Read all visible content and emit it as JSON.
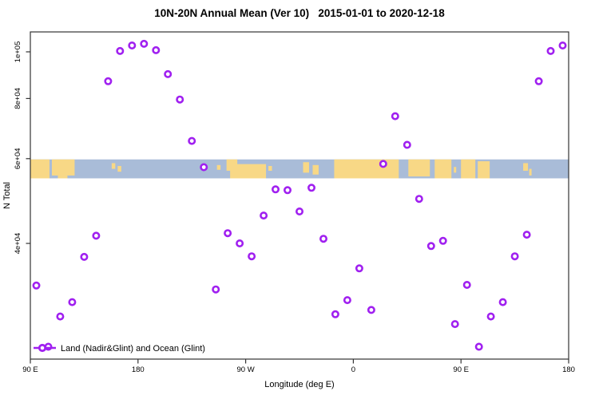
{
  "header": {
    "title": "10N-20N Annual Mean (Ver 10)   2015-01-01 to 2020-12-18"
  },
  "chart_data": {
    "type": "scatter",
    "title": "10N-20N Annual Mean (Ver 10)   2015-01-01 to 2020-12-18",
    "xlabel": "Longitude (deg E)",
    "ylabel": "N Total",
    "x_axis": {
      "min": 90,
      "max": 540,
      "note": "longitude wraps: 90E to 180, 90W, 0, 90E, 180",
      "ticks": [
        {
          "value": 90,
          "label": "90 E"
        },
        {
          "value": 180,
          "label": "180"
        },
        {
          "value": 270,
          "label": "90 W"
        },
        {
          "value": 360,
          "label": "0"
        },
        {
          "value": 450,
          "label": "90 E"
        },
        {
          "value": 540,
          "label": "180"
        }
      ]
    },
    "y_axis": {
      "scale": "log",
      "min": 23000,
      "max": 110000,
      "ticks": [
        {
          "value": 100000,
          "label": "1e+05"
        },
        {
          "value": 80000,
          "label": "8e+04"
        },
        {
          "value": 60000,
          "label": "6e+04"
        },
        {
          "value": 40000,
          "label": "4e+04"
        }
      ]
    },
    "legend": {
      "label": "Land (Nadir&Glint) and Ocean (Glint)"
    },
    "marker": {
      "shape": "open-circle",
      "color": "#a020f0",
      "fill": "#ffffff"
    },
    "series": [
      {
        "name": "Land (Nadir&Glint) and Ocean (Glint)",
        "points": [
          [
            95,
            32700
          ],
          [
            105,
            24400
          ],
          [
            115,
            28200
          ],
          [
            125,
            30200
          ],
          [
            135,
            37500
          ],
          [
            145,
            41500
          ],
          [
            155,
            86900
          ],
          [
            165,
            100400
          ],
          [
            175,
            103100
          ],
          [
            185,
            103900
          ],
          [
            195,
            100800
          ],
          [
            205,
            89900
          ],
          [
            215,
            79600
          ],
          [
            225,
            65300
          ],
          [
            235,
            57600
          ],
          [
            245,
            32100
          ],
          [
            255,
            42000
          ],
          [
            265,
            40000
          ],
          [
            275,
            37600
          ],
          [
            285,
            45700
          ],
          [
            295,
            51800
          ],
          [
            305,
            51600
          ],
          [
            315,
            46600
          ],
          [
            325,
            52200
          ],
          [
            335,
            40900
          ],
          [
            345,
            28500
          ],
          [
            355,
            30500
          ],
          [
            365,
            35500
          ],
          [
            375,
            29100
          ],
          [
            385,
            58500
          ],
          [
            395,
            73500
          ],
          [
            405,
            64100
          ],
          [
            415,
            49500
          ],
          [
            425,
            39500
          ],
          [
            435,
            40500
          ],
          [
            445,
            27200
          ],
          [
            455,
            32800
          ],
          [
            465,
            24400
          ],
          [
            475,
            28200
          ],
          [
            485,
            30200
          ],
          [
            495,
            37600
          ],
          [
            505,
            41700
          ],
          [
            515,
            86900
          ],
          [
            525,
            100400
          ],
          [
            535,
            103100
          ]
        ]
      }
    ],
    "map_strip": {
      "value_top": 59800,
      "value_bottom": 54600,
      "ocean_color": "#a9bcd8",
      "land_color": "#f8d886",
      "land_segments": [
        {
          "from": 90,
          "to": 106,
          "top": 0,
          "bottom": 1
        },
        {
          "from": 108,
          "to": 127,
          "top": 0,
          "bottom": 0.85
        },
        {
          "from": 113,
          "to": 121,
          "top": 0.5,
          "bottom": 1
        },
        {
          "from": 158,
          "to": 161,
          "top": 0.2,
          "bottom": 0.5
        },
        {
          "from": 163,
          "to": 166,
          "top": 0.35,
          "bottom": 0.65
        },
        {
          "from": 246,
          "to": 249,
          "top": 0.3,
          "bottom": 0.55
        },
        {
          "from": 254,
          "to": 263,
          "top": 0,
          "bottom": 0.6
        },
        {
          "from": 257,
          "to": 287,
          "top": 0.25,
          "bottom": 1
        },
        {
          "from": 289,
          "to": 292,
          "top": 0.35,
          "bottom": 0.6
        },
        {
          "from": 318,
          "to": 323,
          "top": 0.15,
          "bottom": 0.7
        },
        {
          "from": 326,
          "to": 331,
          "top": 0.3,
          "bottom": 0.8
        },
        {
          "from": 344,
          "to": 398,
          "top": 0,
          "bottom": 1
        },
        {
          "from": 406,
          "to": 424,
          "top": 0,
          "bottom": 0.9
        },
        {
          "from": 428,
          "to": 442,
          "top": 0,
          "bottom": 1
        },
        {
          "from": 444,
          "to": 446,
          "top": 0.4,
          "bottom": 0.7
        },
        {
          "from": 450,
          "to": 462,
          "top": 0,
          "bottom": 1
        },
        {
          "from": 464,
          "to": 474,
          "top": 0.1,
          "bottom": 1
        },
        {
          "from": 502,
          "to": 506,
          "top": 0.2,
          "bottom": 0.6
        },
        {
          "from": 507,
          "to": 509,
          "top": 0.5,
          "bottom": 0.85
        }
      ]
    }
  }
}
